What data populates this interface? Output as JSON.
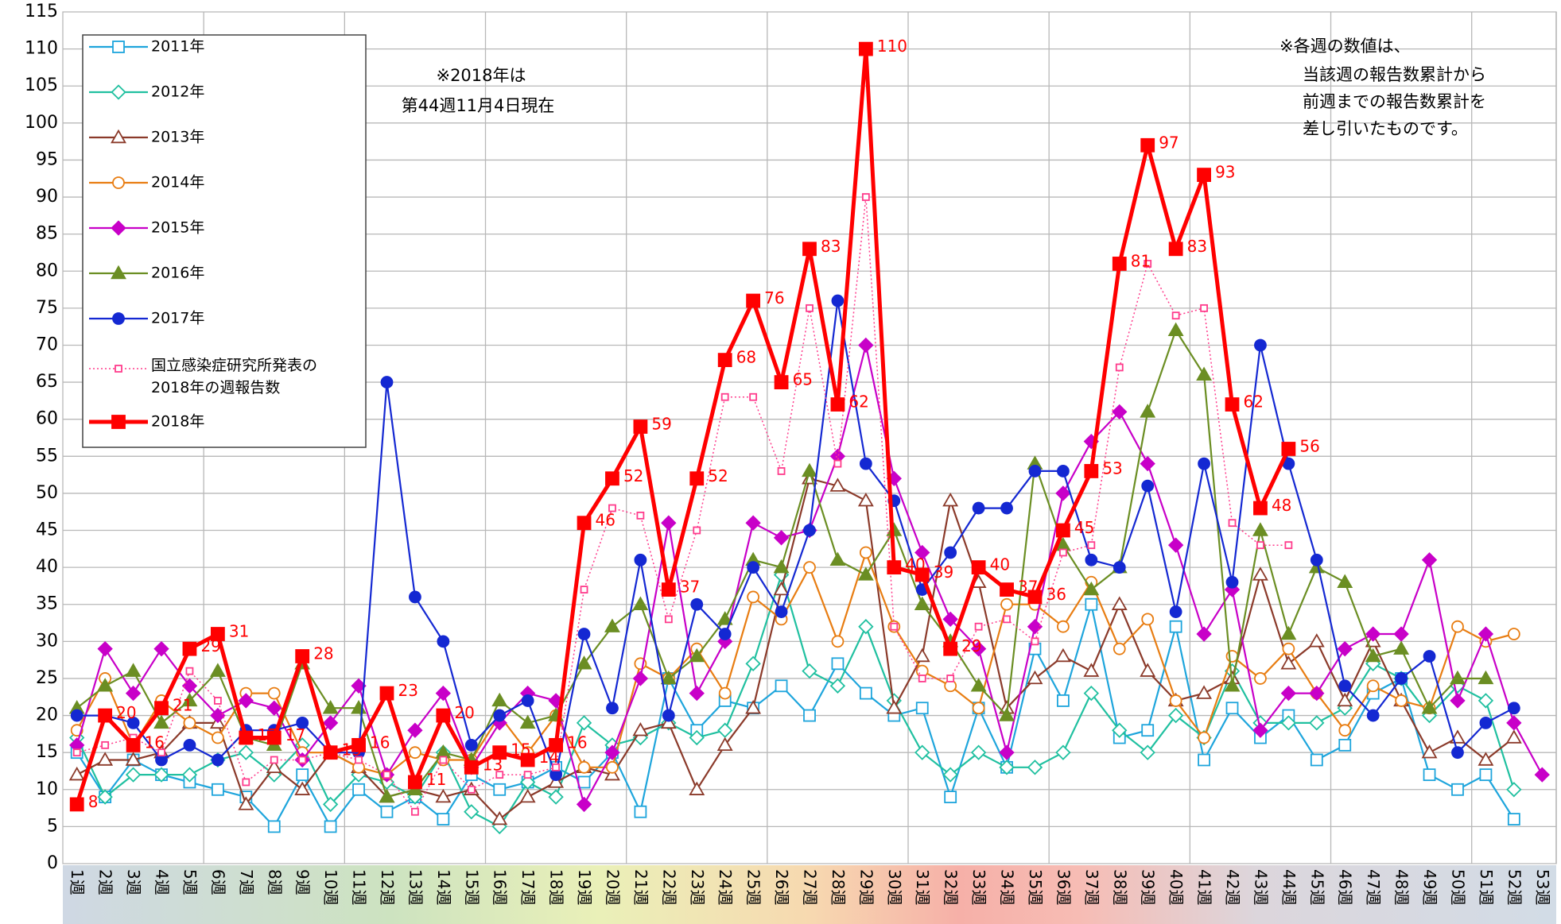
{
  "chart_data": {
    "type": "line",
    "categories": [
      "1週",
      "2週",
      "3週",
      "4週",
      "5週",
      "6週",
      "7週",
      "8週",
      "9週",
      "10週",
      "11週",
      "12週",
      "13週",
      "14週",
      "15週",
      "16週",
      "17週",
      "18週",
      "19週",
      "20週",
      "21週",
      "22週",
      "23週",
      "24週",
      "25週",
      "26週",
      "27週",
      "28週",
      "29週",
      "30週",
      "31週",
      "32週",
      "33週",
      "34週",
      "35週",
      "36週",
      "37週",
      "38週",
      "39週",
      "40週",
      "41週",
      "42週",
      "43週",
      "44週",
      "45週",
      "46週",
      "47週",
      "48週",
      "49週",
      "50週",
      "51週",
      "52週",
      "53週"
    ],
    "ylim": [
      0,
      115
    ],
    "yticks": [
      0,
      5,
      10,
      15,
      20,
      25,
      30,
      35,
      40,
      45,
      50,
      55,
      60,
      65,
      70,
      75,
      80,
      85,
      90,
      95,
      100,
      105,
      110,
      115
    ],
    "grid": true,
    "legend": "upper left",
    "annotations": [
      "※2018年は",
      "第44週11月4日現在"
    ],
    "note": [
      "※各週の数値は、",
      "当該週の報告数累計から",
      "前週までの報告数累計を",
      "差し引いたものです。"
    ],
    "series": [
      {
        "name": "2011年",
        "color": "#1ea5dc",
        "marker": "square",
        "filled": false,
        "values": [
          15,
          9,
          14,
          12,
          11,
          10,
          9,
          5,
          12,
          5,
          10,
          7,
          9,
          6,
          12,
          10,
          11,
          13,
          11,
          15,
          7,
          25,
          18,
          22,
          21,
          24,
          20,
          27,
          23,
          20,
          21,
          9,
          21,
          13,
          29,
          22,
          35,
          17,
          18,
          32,
          14,
          21,
          17,
          20,
          14,
          16,
          23,
          25,
          12,
          10,
          12,
          6,
          null
        ]
      },
      {
        "name": "2012年",
        "color": "#20c0a0",
        "marker": "diamond",
        "filled": false,
        "values": [
          17,
          9,
          12,
          12,
          12,
          14,
          15,
          12,
          16,
          8,
          12,
          11,
          9,
          15,
          7,
          5,
          11,
          9,
          19,
          16,
          17,
          19,
          17,
          18,
          27,
          39,
          26,
          24,
          32,
          22,
          15,
          12,
          15,
          13,
          13,
          15,
          23,
          18,
          15,
          20,
          17,
          26,
          19,
          19,
          19,
          21,
          27,
          25,
          20,
          24,
          22,
          10,
          null
        ]
      },
      {
        "name": "2013年",
        "color": "#8b3a2a",
        "marker": "triangle",
        "filled": false,
        "values": [
          12,
          14,
          14,
          15,
          19,
          19,
          8,
          13,
          10,
          15,
          13,
          9,
          10,
          9,
          10,
          6,
          9,
          11,
          13,
          12,
          18,
          19,
          10,
          16,
          21,
          37,
          52,
          51,
          49,
          21,
          28,
          49,
          38,
          21,
          25,
          28,
          26,
          35,
          26,
          22,
          23,
          25,
          39,
          27,
          30,
          22,
          30,
          22,
          15,
          17,
          14,
          17,
          null
        ]
      },
      {
        "name": "2014年",
        "color": "#e87d12",
        "marker": "circle",
        "filled": false,
        "values": [
          18,
          25,
          16,
          22,
          19,
          17,
          23,
          23,
          15,
          15,
          13,
          12,
          15,
          14,
          14,
          20,
          15,
          20,
          13,
          13,
          27,
          25,
          29,
          23,
          36,
          33,
          40,
          30,
          42,
          32,
          26,
          24,
          21,
          35,
          35,
          32,
          38,
          29,
          33,
          22,
          17,
          28,
          25,
          29,
          23,
          18,
          24,
          22,
          21,
          32,
          30,
          31,
          null
        ]
      },
      {
        "name": "2015年",
        "color": "#c800c8",
        "marker": "diamond",
        "filled": true,
        "values": [
          16,
          29,
          23,
          29,
          24,
          20,
          22,
          21,
          14,
          19,
          24,
          12,
          18,
          23,
          13,
          19,
          23,
          22,
          8,
          15,
          25,
          46,
          23,
          30,
          46,
          44,
          45,
          55,
          70,
          52,
          42,
          33,
          29,
          15,
          32,
          50,
          57,
          61,
          54,
          43,
          31,
          37,
          18,
          23,
          23,
          29,
          31,
          31,
          41,
          22,
          31,
          19,
          12
        ]
      },
      {
        "name": "2016年",
        "color": "#6b8e23",
        "marker": "triangle",
        "filled": true,
        "values": [
          21,
          24,
          26,
          19,
          22,
          26,
          17,
          16,
          27,
          21,
          21,
          9,
          10,
          15,
          14,
          22,
          19,
          20,
          27,
          32,
          35,
          25,
          28,
          33,
          41,
          40,
          53,
          41,
          39,
          45,
          35,
          30,
          24,
          20,
          54,
          43,
          37,
          40,
          61,
          72,
          66,
          24,
          45,
          31,
          40,
          38,
          28,
          29,
          21,
          25,
          25,
          null,
          null
        ]
      },
      {
        "name": "2017年",
        "color": "#1428d2",
        "marker": "circle",
        "filled": true,
        "values": [
          20,
          20,
          19,
          14,
          16,
          14,
          18,
          18,
          19,
          15,
          15,
          65,
          36,
          30,
          16,
          20,
          22,
          12,
          31,
          21,
          41,
          20,
          35,
          31,
          40,
          34,
          45,
          76,
          54,
          49,
          37,
          42,
          48,
          48,
          53,
          53,
          41,
          40,
          51,
          34,
          54,
          38,
          70,
          54,
          41,
          24,
          20,
          25,
          28,
          15,
          19,
          21,
          null
        ]
      },
      {
        "name": "国立感染症研究所発表の2018年の週報告数",
        "color": "#ff3c8c",
        "marker": "square",
        "filled": false,
        "dash": true,
        "values": [
          15,
          16,
          17,
          15,
          26,
          22,
          11,
          14,
          14,
          15,
          14,
          12,
          7,
          14,
          10,
          12,
          12,
          13,
          37,
          48,
          47,
          33,
          45,
          63,
          63,
          53,
          75,
          54,
          90,
          32,
          25,
          25,
          32,
          33,
          30,
          42,
          43,
          67,
          81,
          74,
          75,
          46,
          43,
          43,
          null,
          null,
          null,
          null,
          null,
          null,
          null,
          null,
          null
        ]
      },
      {
        "name": "2018年",
        "color": "#ff0000",
        "marker": "square",
        "filled": true,
        "bold": true,
        "data_labels": true,
        "values": [
          8,
          20,
          16,
          21,
          29,
          31,
          17,
          17,
          28,
          15,
          16,
          23,
          11,
          20,
          13,
          15,
          14,
          16,
          46,
          52,
          59,
          37,
          52,
          68,
          76,
          65,
          83,
          62,
          110,
          40,
          39,
          29,
          40,
          37,
          36,
          45,
          53,
          81,
          97,
          83,
          93,
          62,
          48,
          56,
          null,
          null,
          null,
          null,
          null,
          null,
          null,
          null,
          null
        ]
      }
    ]
  }
}
